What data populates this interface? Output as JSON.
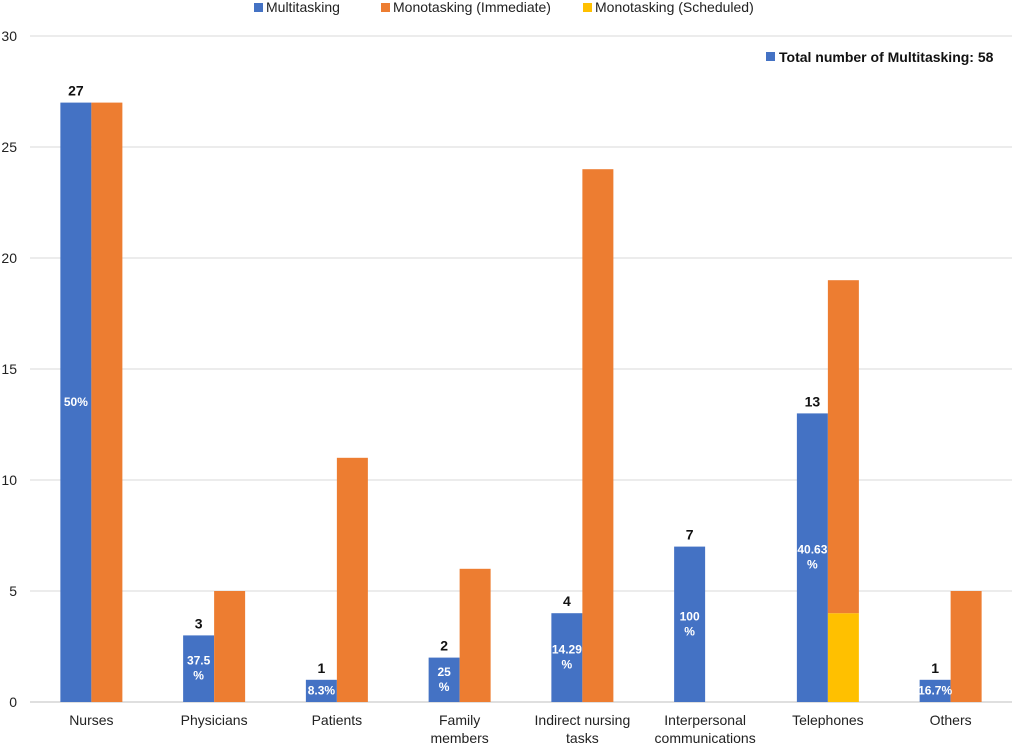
{
  "chart_data": {
    "type": "bar",
    "ylim": [
      0,
      30
    ],
    "yticks": [
      0,
      5,
      10,
      15,
      20,
      25,
      30
    ],
    "grid": true,
    "legend": "top",
    "categories": [
      [
        "Nurses"
      ],
      [
        "Physicians"
      ],
      [
        "Patients"
      ],
      [
        "Family",
        "members"
      ],
      [
        "Indirect nursing",
        "tasks"
      ],
      [
        "Interpersonal",
        "communications"
      ],
      [
        "Telephones"
      ],
      [
        "Others"
      ]
    ],
    "series": [
      {
        "name": "Multitasking",
        "color": "#4472C4",
        "values": [
          27,
          3,
          1,
          2,
          4,
          7,
          13,
          1
        ]
      },
      {
        "name": "Monotasking (Immediate)",
        "color": "#ED7D31",
        "values": [
          27,
          5,
          11,
          6,
          24,
          0,
          15,
          5
        ]
      },
      {
        "name": "Monotasking (Scheduled)",
        "color": "#FFC000",
        "values": [
          0,
          0,
          0,
          0,
          0,
          0,
          4,
          0
        ]
      }
    ],
    "count_labels": [
      "27",
      "3",
      "1",
      "2",
      "4",
      "7",
      "13",
      "1"
    ],
    "percent_labels": [
      [
        "50%"
      ],
      [
        "37.5",
        "%"
      ],
      [
        "8.3%"
      ],
      [
        "25",
        "%"
      ],
      [
        "14.29",
        "%"
      ],
      [
        "100",
        "%"
      ],
      [
        "40.63",
        "%"
      ],
      [
        "16.7%"
      ]
    ],
    "annotation": "Total number of Multitasking: 58"
  }
}
